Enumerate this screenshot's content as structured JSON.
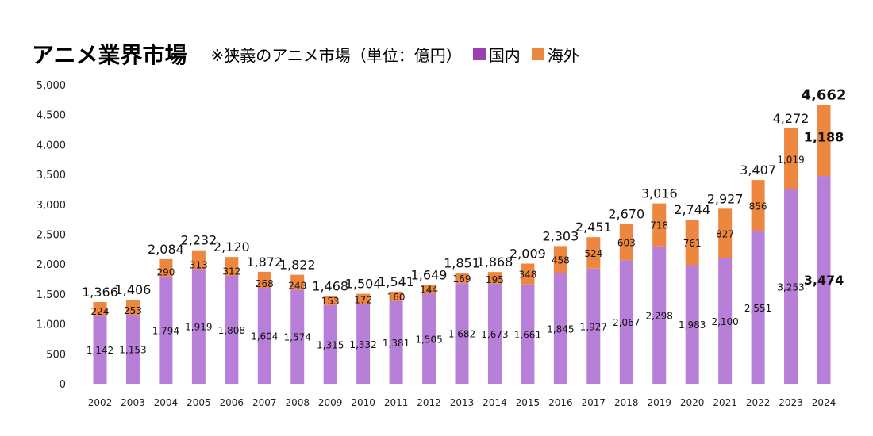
{
  "chart_data": {
    "type": "bar",
    "stacked": true,
    "title": "アニメ業界市場",
    "subtitle": "※狭義のアニメ市場（単位：億円）",
    "ylim": [
      0,
      5000
    ],
    "yticks": [
      "0",
      "500",
      "1,000",
      "1,500",
      "2,000",
      "2,500",
      "3,000",
      "3,500",
      "4,000",
      "4,500",
      "5,000"
    ],
    "ytick_values": [
      0,
      500,
      1000,
      1500,
      2000,
      2500,
      3000,
      3500,
      4000,
      4500,
      5000
    ],
    "categories": [
      "2002",
      "2003",
      "2004",
      "2005",
      "2006",
      "2007",
      "2008",
      "2009",
      "2010",
      "2011",
      "2012",
      "2013",
      "2014",
      "2015",
      "2016",
      "2017",
      "2018",
      "2019",
      "2020",
      "2021",
      "2022",
      "2023",
      "2024"
    ],
    "series": [
      {
        "name": "国内",
        "color": "#b87fd9",
        "values": [
          1142,
          1153,
          1794,
          1919,
          1808,
          1604,
          1574,
          1315,
          1332,
          1381,
          1505,
          1682,
          1673,
          1661,
          1845,
          1927,
          2067,
          2298,
          1983,
          2100,
          2551,
          3253,
          3474
        ],
        "labels": [
          "1,142",
          "1,153",
          "1,794",
          "1,919",
          "1,808",
          "1,604",
          "1,574",
          "1,315",
          "1,332",
          "1,381",
          "1,505",
          "1,682",
          "1,673",
          "1,661",
          "1,845",
          "1,927",
          "2,067",
          "2,298",
          "1,983",
          "2,100",
          "2,551",
          "3,253",
          "3,474"
        ]
      },
      {
        "name": "海外",
        "color": "#ed8740",
        "values": [
          224,
          253,
          290,
          313,
          312,
          268,
          248,
          153,
          172,
          160,
          144,
          169,
          195,
          348,
          458,
          524,
          603,
          718,
          761,
          827,
          856,
          1019,
          1188
        ],
        "labels": [
          "224",
          "253",
          "290",
          "313",
          "312",
          "268",
          "248",
          "153",
          "172",
          "160",
          "144",
          "169",
          "195",
          "348",
          "458",
          "524",
          "603",
          "718",
          "761",
          "827",
          "856",
          "1,019",
          "1,188"
        ]
      }
    ],
    "totals": [
      1366,
      1406,
      2084,
      2232,
      2120,
      1872,
      1822,
      1468,
      1504,
      1541,
      1649,
      1851,
      1868,
      2009,
      2303,
      2451,
      2670,
      3016,
      2744,
      2927,
      3407,
      4272,
      4662
    ],
    "total_labels": [
      "1,366",
      "1,406",
      "2,084",
      "2,232",
      "2,120",
      "1,872",
      "1,822",
      "1,468",
      "1,504",
      "1,541",
      "1,649",
      "1,851",
      "1,868",
      "2,009",
      "2,303",
      "2,451",
      "2,670",
      "3,016",
      "2,744",
      "2,927",
      "3,407",
      "4,272",
      "4,662"
    ],
    "legend": "top",
    "grid": false
  }
}
